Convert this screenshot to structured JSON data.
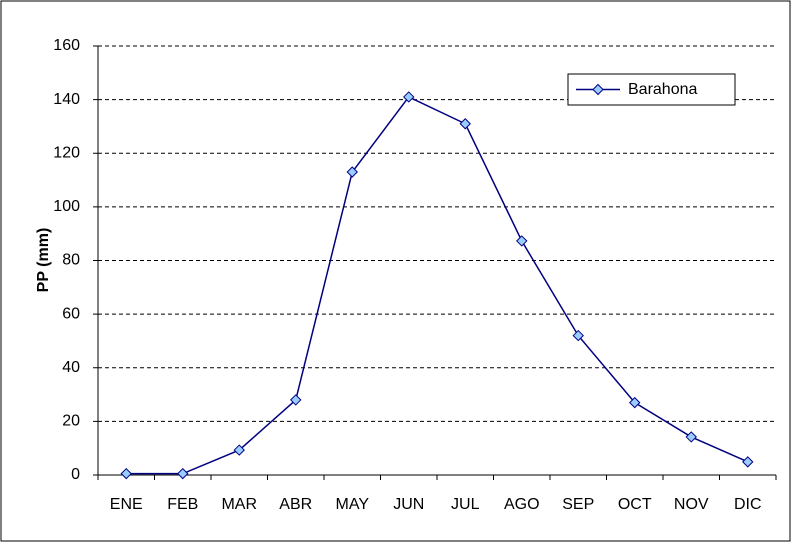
{
  "chart_data": {
    "type": "line",
    "y_label": "PP (mm)",
    "categories": [
      "ENE",
      "FEB",
      "MAR",
      "ABR",
      "MAY",
      "JUN",
      "JUL",
      "AGO",
      "SEP",
      "OCT",
      "NOV",
      "DIC"
    ],
    "series": [
      {
        "name": "Barahona",
        "color": "#000080",
        "marker_fill": "#99ccff",
        "values": [
          0.5,
          0.5,
          9.3,
          28,
          113,
          141,
          131,
          87.3,
          52,
          27,
          14.2,
          4.9
        ]
      }
    ],
    "ylim": [
      0,
      160
    ],
    "yticks": [
      0,
      20,
      40,
      60,
      80,
      100,
      120,
      140,
      160
    ],
    "grid": true,
    "legend": "top-right"
  }
}
